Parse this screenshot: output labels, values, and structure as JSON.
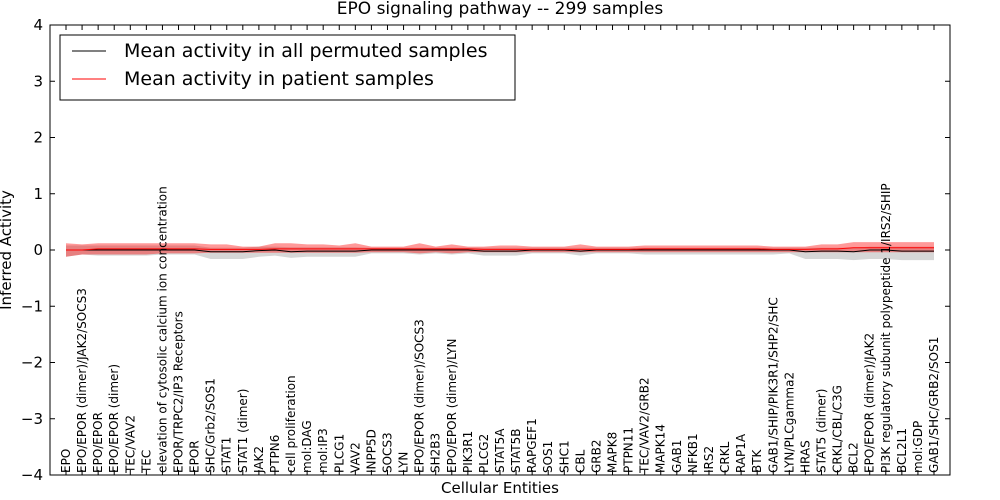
{
  "chart_data": {
    "type": "line",
    "title": "EPO signaling pathway -- 299 samples",
    "xlabel": "Cellular Entities",
    "ylabel": "Inferred Activity",
    "ylim": [
      -4,
      4
    ],
    "yticks": [
      -4,
      -3,
      -2,
      -1,
      0,
      1,
      2,
      3,
      4
    ],
    "grid": false,
    "legend_position": "top-left",
    "categories": [
      "EPO",
      "EPO/EPOR (dimer)/JAK2/SOCS3",
      "EPO/EPOR",
      "EPO/EPOR (dimer)",
      "TEC/VAV2",
      "TEC",
      "elevation of cytosolic calcium ion concentration",
      "EPOR/TRPC2/IP3 Receptors",
      "EPOR",
      "SHC/Grb2/SOS1",
      "STAT1",
      "STAT1 (dimer)",
      "JAK2",
      "PTPN6",
      "cell proliferation",
      "mol:DAG",
      "mol:IP3",
      "PLCG1",
      "VAV2",
      "INPP5D",
      "SOCS3",
      "LYN",
      "EPO/EPOR (dimer)/SOCS3",
      "SH2B3",
      "EPO/EPOR (dimer)/LYN",
      "PIK3R1",
      "PLCG2",
      "STAT5A",
      "STAT5B",
      "RAPGEF1",
      "SOS1",
      "SHC1",
      "CBL",
      "GRB2",
      "MAPK8",
      "PTPN11",
      "TEC/VAV2/GRB2",
      "MAPK14",
      "GAB1",
      "NFKB1",
      "IRS2",
      "CRKL",
      "RAP1A",
      "BTK",
      "GAB1/SHIP/PIK3R1/SHP2/SHC",
      "LYN/PLCgamma2",
      "HRAS",
      "STAT5 (dimer)",
      "CRKL/CBL/C3G",
      "BCL2",
      "EPO/EPOR (dimer)/JAK2",
      "PI3K regulatory subunit polypeptide 1/IRS2/SHIP",
      "BCL2L1",
      "mol:GDP",
      "GAB1/SHC/GRB2/SOS1"
    ],
    "series": [
      {
        "name": "Mean activity in all permuted samples",
        "color": "#000000",
        "values": [
          0,
          0,
          0,
          0,
          0,
          0,
          0,
          0,
          0,
          -0.03,
          -0.03,
          -0.03,
          -0.01,
          0,
          -0.03,
          -0.02,
          -0.02,
          -0.02,
          -0.02,
          0,
          0,
          0,
          0,
          0,
          0,
          0,
          -0.02,
          -0.02,
          -0.02,
          0,
          0,
          0,
          -0.02,
          0,
          0,
          0,
          0,
          0,
          0,
          0,
          0,
          0,
          0,
          0,
          0,
          0,
          -0.03,
          -0.02,
          -0.02,
          -0.03,
          0,
          0,
          -0.02,
          -0.02,
          -0.02
        ],
        "band_lower": [
          -0.12,
          -0.08,
          -0.1,
          -0.1,
          -0.1,
          -0.1,
          -0.08,
          -0.08,
          -0.08,
          -0.16,
          -0.16,
          -0.16,
          -0.12,
          -0.1,
          -0.14,
          -0.12,
          -0.12,
          -0.12,
          -0.12,
          -0.06,
          -0.06,
          -0.06,
          -0.08,
          -0.06,
          -0.08,
          -0.06,
          -0.1,
          -0.1,
          -0.1,
          -0.06,
          -0.06,
          -0.06,
          -0.1,
          -0.06,
          -0.06,
          -0.06,
          -0.08,
          -0.08,
          -0.08,
          -0.08,
          -0.08,
          -0.08,
          -0.08,
          -0.08,
          -0.08,
          -0.06,
          -0.16,
          -0.16,
          -0.16,
          -0.18,
          -0.16,
          -0.16,
          -0.18,
          -0.18,
          -0.18
        ],
        "band_upper": [
          0.08,
          0.08,
          0.08,
          0.08,
          0.08,
          0.08,
          0.08,
          0.08,
          0.08,
          0.04,
          0.04,
          0.04,
          0.06,
          0.06,
          0.05,
          0.05,
          0.05,
          0.05,
          0.05,
          0.04,
          0.04,
          0.04,
          0.04,
          0.04,
          0.04,
          0.04,
          0.04,
          0.04,
          0.04,
          0.04,
          0.04,
          0.04,
          0.04,
          0.04,
          0.04,
          0.04,
          0.04,
          0.04,
          0.04,
          0.04,
          0.04,
          0.04,
          0.04,
          0.04,
          0.04,
          0.04,
          0.04,
          0.04,
          0.04,
          0.04,
          0.06,
          0.06,
          0.06,
          0.06,
          0.06
        ],
        "band_color": "#d6d6d6"
      },
      {
        "name": "Mean activity in patient samples",
        "color": "#ff0000",
        "values": [
          0,
          0,
          0.02,
          0.02,
          0.02,
          0.02,
          0.02,
          0.02,
          0.02,
          0.01,
          0.01,
          0.01,
          0.01,
          0.02,
          0.02,
          0.02,
          0.02,
          0.02,
          0.02,
          0.02,
          0.02,
          0.02,
          0.02,
          0.02,
          0.02,
          0.02,
          0.01,
          0.01,
          0.01,
          0.01,
          0.01,
          0.01,
          0.01,
          0.01,
          0.01,
          0.01,
          0.02,
          0.02,
          0.02,
          0.02,
          0.02,
          0.02,
          0.02,
          0.02,
          0.01,
          0.01,
          0.01,
          0.02,
          0.02,
          0.04,
          0.04,
          0.04,
          0.04,
          0.04,
          0.04
        ],
        "band_lower": [
          -0.12,
          -0.08,
          -0.08,
          -0.08,
          -0.08,
          -0.08,
          -0.06,
          -0.06,
          -0.06,
          -0.05,
          -0.05,
          -0.05,
          -0.05,
          -0.05,
          -0.05,
          -0.05,
          -0.05,
          -0.05,
          -0.05,
          -0.04,
          -0.04,
          -0.04,
          -0.06,
          -0.04,
          -0.06,
          -0.04,
          -0.04,
          -0.04,
          -0.04,
          -0.04,
          -0.04,
          -0.04,
          -0.04,
          -0.04,
          -0.04,
          -0.04,
          -0.04,
          -0.04,
          -0.04,
          -0.04,
          -0.04,
          -0.04,
          -0.04,
          -0.04,
          -0.04,
          -0.04,
          -0.04,
          -0.04,
          -0.04,
          -0.04,
          -0.04,
          -0.04,
          -0.04,
          -0.04,
          -0.04
        ],
        "band_upper": [
          0.12,
          0.1,
          0.12,
          0.12,
          0.12,
          0.12,
          0.12,
          0.12,
          0.12,
          0.1,
          0.1,
          0.06,
          0.06,
          0.12,
          0.12,
          0.1,
          0.1,
          0.08,
          0.12,
          0.06,
          0.06,
          0.06,
          0.12,
          0.06,
          0.1,
          0.06,
          0.06,
          0.08,
          0.08,
          0.06,
          0.06,
          0.06,
          0.1,
          0.06,
          0.06,
          0.06,
          0.08,
          0.08,
          0.08,
          0.08,
          0.08,
          0.08,
          0.08,
          0.08,
          0.06,
          0.06,
          0.06,
          0.1,
          0.1,
          0.14,
          0.14,
          0.14,
          0.14,
          0.14,
          0.14
        ],
        "band_color": "#ff0000",
        "band_opacity": 0.4
      }
    ]
  }
}
